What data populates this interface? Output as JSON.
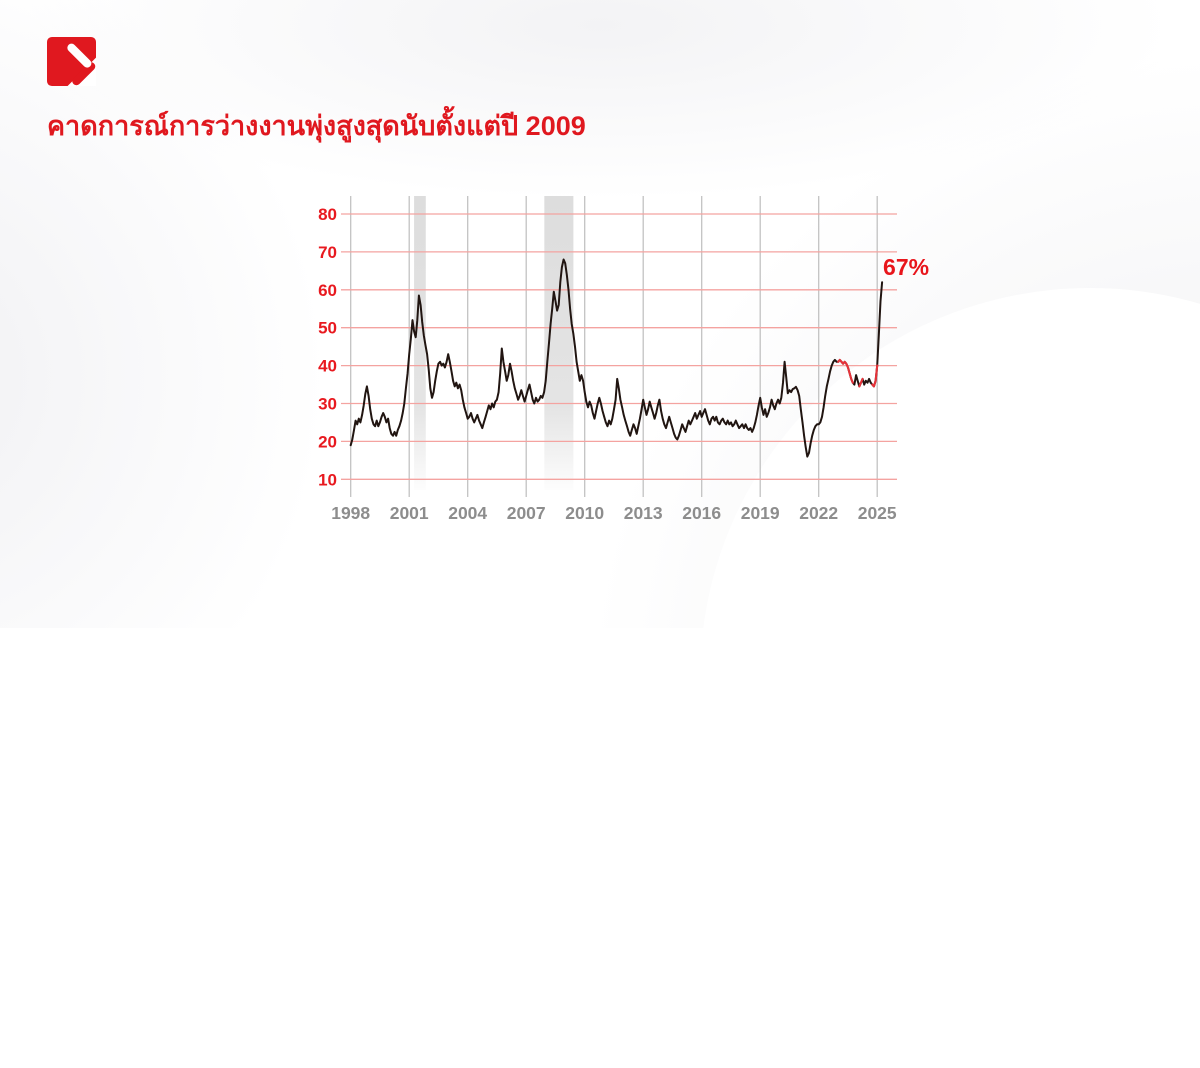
{
  "header": {
    "title": "คาดการณ์การว่างงานพุ่งสูงสุดนับตั้งแต่ปี 2009",
    "title_color": "#e0181f"
  },
  "brand": {
    "logo_color": "#e0181f",
    "logo_mark": "red-square-with-diagonal-strokes"
  },
  "chart_data": {
    "type": "line",
    "title": "",
    "xlabel": "",
    "ylabel": "",
    "x_axis": {
      "tick_years": [
        1998,
        2001,
        2004,
        2007,
        2010,
        2013,
        2016,
        2019,
        2022,
        2025
      ],
      "range": [
        1997.5,
        2026.1
      ],
      "label_color": "#8d8d8d"
    },
    "y_axis": {
      "ticks": [
        10,
        20,
        30,
        40,
        50,
        60,
        70,
        80
      ],
      "range": [
        10,
        85
      ],
      "label_color": "#e8191f"
    },
    "grid": {
      "h_color": "#f4a3a0",
      "v_color": "#c2c2c2",
      "band_color": "#d9d9d9"
    },
    "recession_bands": [
      {
        "start": 2001.25,
        "end": 2001.85
      },
      {
        "start": 2007.93,
        "end": 2009.42
      }
    ],
    "annotation": {
      "text": "67%",
      "color": "#e8151b"
    },
    "series": [
      {
        "name": "unemployment-expectations",
        "color": "#211511",
        "start_year": 1998,
        "step_months": 1,
        "values": [
          19,
          20.5,
          23,
          25.5,
          24.5,
          26,
          25,
          27,
          29.5,
          32.5,
          34.5,
          32,
          28.5,
          26,
          24.5,
          24,
          25.5,
          24,
          25,
          26.5,
          27.5,
          26.5,
          25,
          26,
          23.5,
          22,
          21.5,
          22.5,
          21.5,
          23,
          24,
          25.5,
          27.5,
          30,
          34,
          38,
          43,
          47,
          52,
          49,
          47.5,
          52,
          58.5,
          56,
          51.5,
          48,
          45.5,
          43,
          39,
          34,
          31.5,
          33,
          36,
          38.5,
          40.5,
          41,
          40,
          40.5,
          39.5,
          41,
          43,
          41,
          38.5,
          36,
          34.5,
          35.5,
          34,
          35,
          33.5,
          31,
          29,
          27.5,
          26,
          26.5,
          27.5,
          26,
          25,
          26,
          27,
          25.5,
          24.5,
          23.5,
          25,
          26.5,
          28,
          29.5,
          28.5,
          30,
          29,
          30.5,
          31,
          33,
          38,
          44.5,
          41,
          38.5,
          36,
          37.5,
          40.5,
          38.5,
          36,
          34,
          32.5,
          31,
          32,
          33.5,
          32,
          30.5,
          32,
          33.5,
          35,
          33,
          31,
          30,
          31.5,
          30.5,
          31,
          32,
          31.5,
          33,
          36,
          41,
          46,
          51,
          55,
          59.5,
          57,
          54.5,
          56,
          62,
          66,
          68,
          67,
          64,
          60,
          55,
          51,
          48.5,
          45,
          41,
          38.5,
          36,
          37.5,
          36,
          33,
          30.5,
          29,
          30.5,
          29.5,
          27.5,
          26,
          28,
          30,
          31.5,
          30,
          28,
          26.5,
          25,
          24,
          25.5,
          24.5,
          26,
          28.5,
          31,
          36.5,
          34,
          31,
          29,
          27,
          25.5,
          24,
          22.5,
          21.5,
          23,
          24.5,
          23.5,
          22,
          24,
          26,
          28.5,
          31,
          29,
          27,
          28.5,
          30.5,
          29,
          27.5,
          26,
          27.5,
          29.5,
          31,
          28,
          26,
          24.5,
          23.5,
          25,
          26.5,
          25,
          23.5,
          22,
          21,
          20.5,
          21.5,
          23,
          24.5,
          23.5,
          22.5,
          24,
          25.5,
          24.5,
          25.5,
          26.5,
          27.5,
          26,
          27,
          28,
          26.5,
          27.5,
          28.5,
          27,
          25.5,
          24.5,
          26,
          26.5,
          25.5,
          26.5,
          25,
          24.5,
          25.5,
          26,
          25,
          24.5,
          25.5,
          24.5,
          25,
          24,
          24.5,
          25.5,
          24.5,
          23.5,
          24,
          24.5,
          23.5,
          24.5,
          23.5,
          23,
          23.5,
          22.5,
          23.5,
          25,
          27,
          29.5,
          31.5,
          29,
          27,
          28.5,
          26.5,
          27.5,
          29,
          31,
          29.5,
          28.5,
          30,
          31,
          30,
          31.5,
          35.5,
          41,
          37,
          32.7,
          33.5,
          33,
          33.8,
          34,
          34.4,
          33.5,
          32,
          28.5,
          25,
          21.5,
          18.5,
          16,
          17,
          19.5,
          21.5,
          23,
          24,
          24.5,
          24.5,
          25,
          26.5,
          29,
          32,
          34.5,
          36.5,
          38.5,
          40,
          41,
          41.5,
          41,
          41,
          41.5,
          41,
          40.5,
          41,
          40.5,
          39.5,
          38,
          36.5,
          35.5,
          35,
          37.5,
          36,
          34.5,
          35.5,
          36.5,
          35,
          36,
          35.5,
          36.5,
          35.5,
          35,
          34.5,
          36,
          40,
          48,
          57,
          62
        ]
      }
    ],
    "overlay_segments": [
      {
        "name": "highlight-2023",
        "color": "#e6333a",
        "start_year": 2023.0,
        "step_months": 1,
        "values": [
          41,
          41.5,
          41,
          40.5,
          41,
          40.5,
          39.5,
          38,
          36.5,
          35.5
        ]
      },
      {
        "name": "highlight-2024a",
        "color": "#e6333a",
        "start_year": 2024.083,
        "step_months": 1,
        "values": [
          34.5,
          35.5,
          36.5
        ]
      },
      {
        "name": "highlight-2024b",
        "color": "#e6333a",
        "start_year": 2024.75,
        "step_months": 1,
        "values": [
          35,
          34.5,
          36,
          40
        ]
      }
    ]
  }
}
